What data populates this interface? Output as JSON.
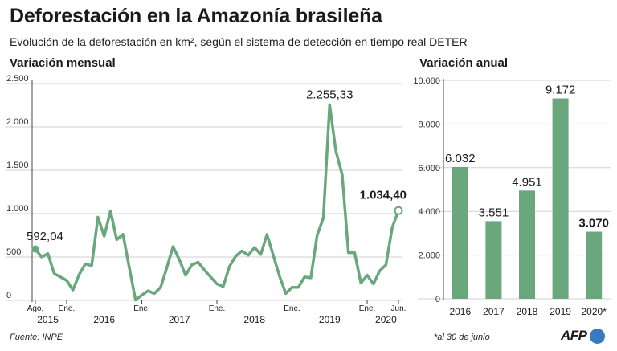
{
  "title": "Deforestación en la Amazonía brasileña",
  "subtitle": "Evolución de la deforestación en km², según el sistema de detección en tiempo real DETER",
  "footer": {
    "source": "Fuente: INPE",
    "note": "*al 30 de junio",
    "logo_text": "AFP"
  },
  "colors": {
    "series": "#6aa77c",
    "grid": "#d0d0d0",
    "axis": "#444444",
    "logo_dot": "#3b79be"
  },
  "chart_data": [
    {
      "type": "line",
      "title": "Variación mensual",
      "ylabel": "km²",
      "ylim": [
        0,
        2500
      ],
      "yticks": [
        0,
        500,
        1000,
        1500,
        2000,
        2500
      ],
      "ytick_labels": [
        "0",
        "500",
        "1.000",
        "1.500",
        "2.000",
        "2.500"
      ],
      "x_month_labels": [
        {
          "i": 0,
          "label": "Ago."
        },
        {
          "i": 5,
          "label": "Ene."
        },
        {
          "i": 17,
          "label": "Ene."
        },
        {
          "i": 29,
          "label": "Ene."
        },
        {
          "i": 41,
          "label": "Ene."
        },
        {
          "i": 53,
          "label": "Ene."
        },
        {
          "i": 58,
          "label": "Jun."
        }
      ],
      "x_year_labels": [
        {
          "i": 2,
          "label": "2015"
        },
        {
          "i": 11,
          "label": "2016"
        },
        {
          "i": 23,
          "label": "2017"
        },
        {
          "i": 35,
          "label": "2018"
        },
        {
          "i": 47,
          "label": "2019"
        },
        {
          "i": 56,
          "label": "2020"
        }
      ],
      "values": [
        592.04,
        500,
        540,
        310,
        270,
        230,
        120,
        300,
        420,
        400,
        960,
        740,
        1030,
        700,
        760,
        380,
        5,
        60,
        110,
        80,
        150,
        380,
        620,
        470,
        290,
        410,
        440,
        350,
        270,
        190,
        160,
        390,
        510,
        570,
        520,
        610,
        530,
        760,
        520,
        280,
        80,
        150,
        150,
        270,
        260,
        750,
        950,
        2255.33,
        1720,
        1450,
        550,
        550,
        200,
        290,
        190,
        340,
        410,
        840,
        1034.4
      ],
      "annotations": [
        {
          "i": 0,
          "label": "592,04",
          "bold": false,
          "marker": "filled"
        },
        {
          "i": 47,
          "label": "2.255,33",
          "bold": false,
          "marker": "none"
        },
        {
          "i": 58,
          "label": "1.034,40",
          "bold": true,
          "marker": "open"
        }
      ]
    },
    {
      "type": "bar",
      "title": "Variación anual",
      "categories": [
        "2016",
        "2017",
        "2018",
        "2019",
        "2020*"
      ],
      "values": [
        6032,
        3551,
        4951,
        9172,
        3070
      ],
      "value_labels": [
        "6.032",
        "3.551",
        "4.951",
        "9.172",
        "3.070"
      ],
      "bold_index": 4,
      "ylim": [
        0,
        10000
      ],
      "yticks": [
        0,
        2000,
        4000,
        6000,
        8000,
        10000
      ],
      "ytick_labels": [
        "0",
        "2.000",
        "4.000",
        "6.000",
        "8.000",
        "10.000"
      ]
    }
  ]
}
